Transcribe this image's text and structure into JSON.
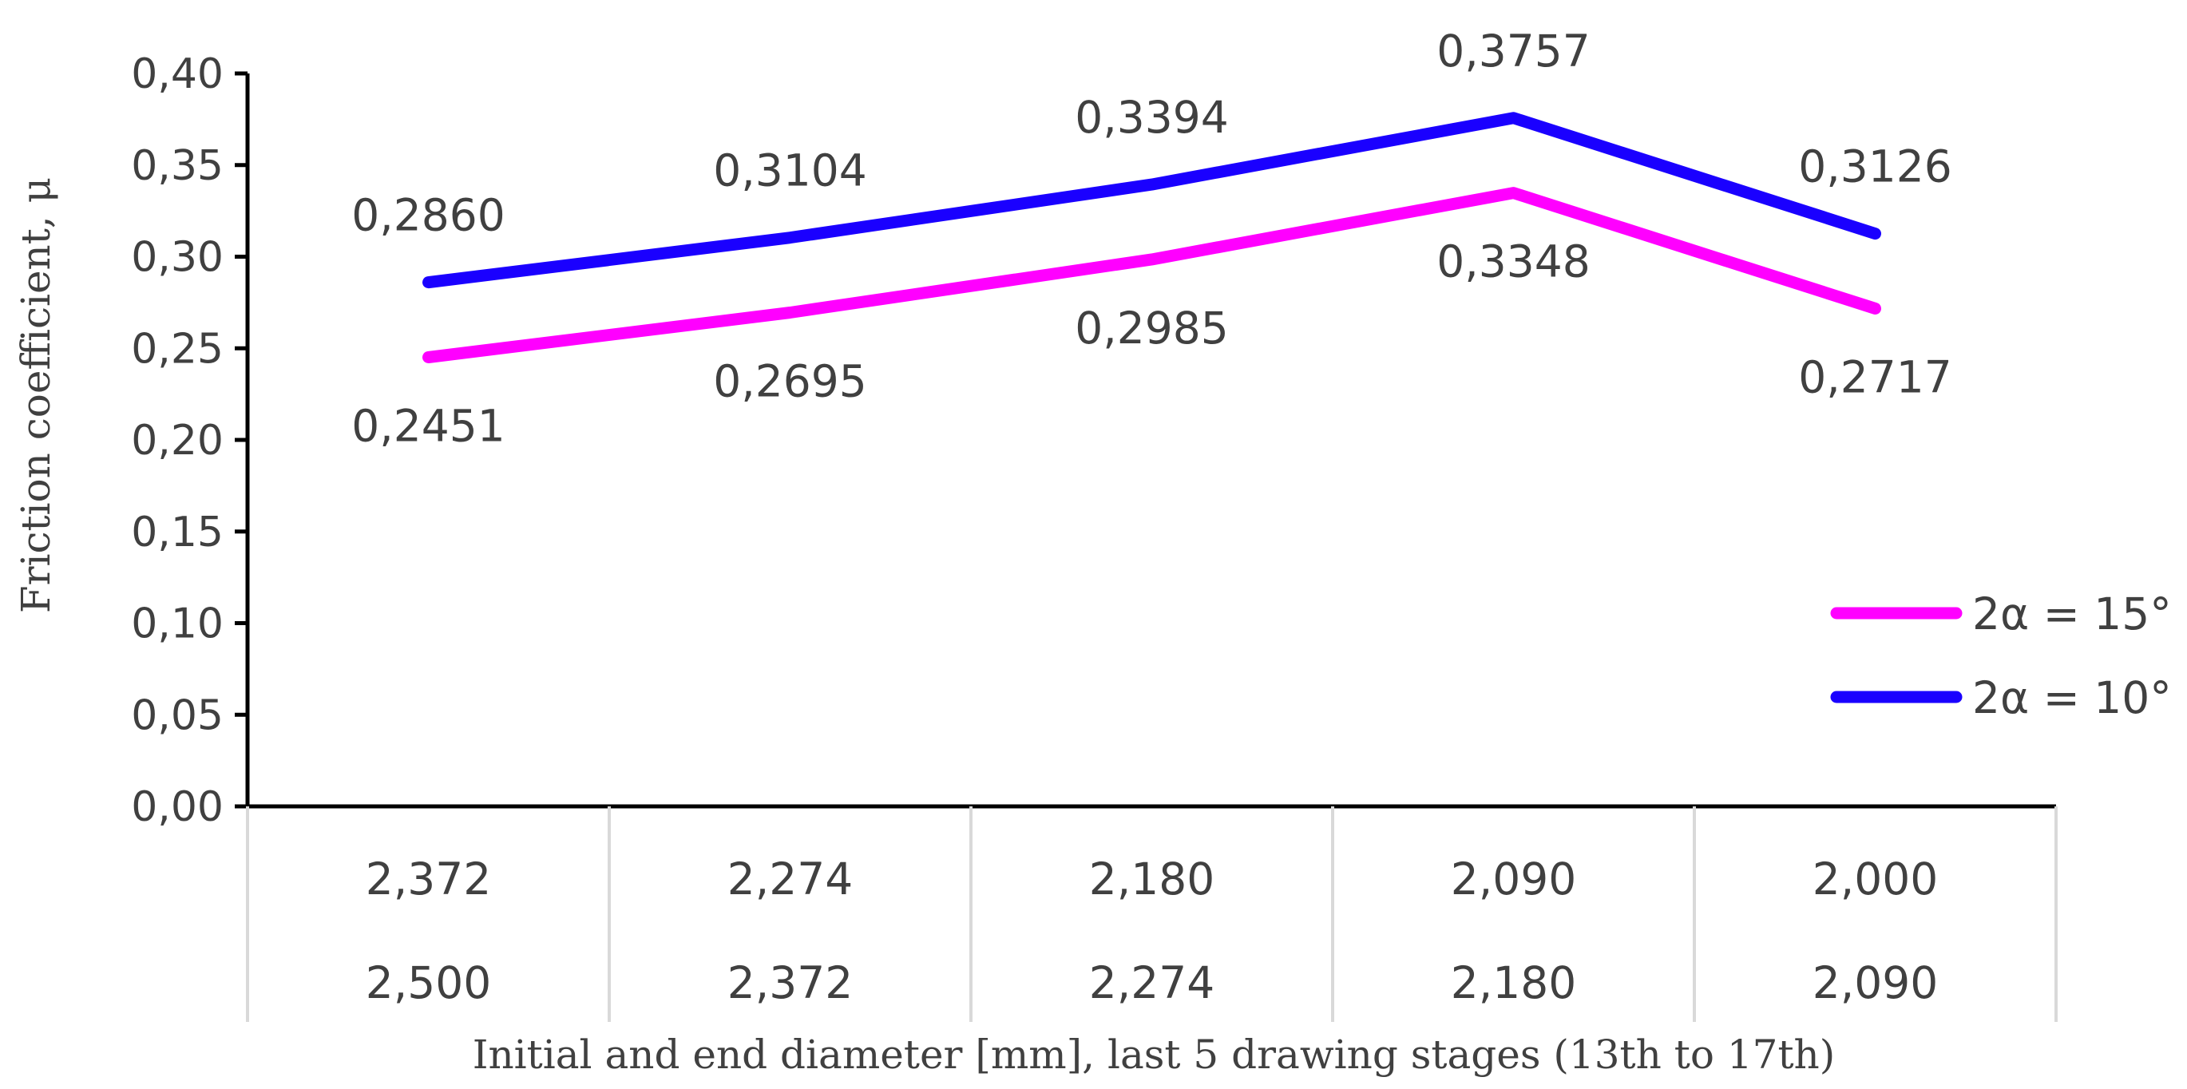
{
  "chart_data": {
    "type": "line",
    "ylabel": "Friction  coefficient,  μ",
    "xlabel": "Initial and end diameter [mm], last 5 drawing stages (13th to 17th)",
    "ylim": [
      0,
      0.4
    ],
    "yticks": [
      "0,00",
      "0,05",
      "0,10",
      "0,15",
      "0,20",
      "0,25",
      "0,30",
      "0,35",
      "0,40"
    ],
    "categories": [
      {
        "end": "2,372",
        "initial": "2,500"
      },
      {
        "end": "2,274",
        "initial": "2,372"
      },
      {
        "end": "2,180",
        "initial": "2,274"
      },
      {
        "end": "2,090",
        "initial": "2,180"
      },
      {
        "end": "2,000",
        "initial": "2,090"
      }
    ],
    "series": [
      {
        "name": "2α = 15°",
        "color": "#ff00ff",
        "values": [
          0.2451,
          0.2695,
          0.2985,
          0.3348,
          0.2717
        ],
        "labels": [
          "0,2451",
          "0,2695",
          "0,2985",
          "0,3348",
          "0,2717"
        ]
      },
      {
        "name": "2α = 10°",
        "color": "#1a00ff",
        "values": [
          0.286,
          0.3104,
          0.3394,
          0.3757,
          0.3126
        ],
        "labels": [
          "0,2860",
          "0,3104",
          "0,3394",
          "0,3757",
          "0,3126"
        ]
      }
    ],
    "legend": "right",
    "grid": false
  }
}
